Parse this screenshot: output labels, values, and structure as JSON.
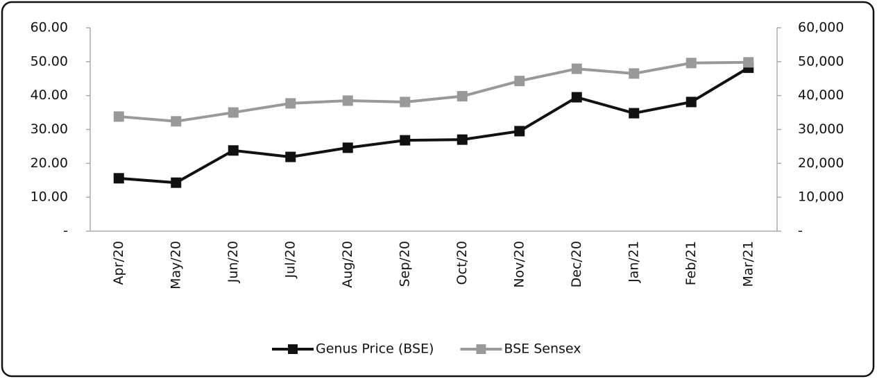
{
  "chart_data": {
    "type": "line",
    "categories": [
      "Apr/20",
      "May/20",
      "Jun/20",
      "Jul/20",
      "Aug/20",
      "Sep/20",
      "Oct/20",
      "Nov/20",
      "Dec/20",
      "Jan/21",
      "Feb/21",
      "Mar/21"
    ],
    "series": [
      {
        "name": "Genus Price (BSE)",
        "color": "#111111",
        "values": [
          15.6,
          14.3,
          23.8,
          21.9,
          24.6,
          26.8,
          27.0,
          29.5,
          39.5,
          34.8,
          38.1,
          48.2
        ]
      },
      {
        "name": "BSE Sensex",
        "color": "#999999",
        "axis": "y2",
        "values": [
          33800,
          32400,
          35000,
          37700,
          38500,
          38100,
          39800,
          44300,
          47900,
          46500,
          49600,
          49800
        ]
      }
    ],
    "ylim": [
      0,
      60
    ],
    "yticks": [
      {
        "value": 0,
        "label": "-"
      },
      {
        "value": 10,
        "label": "10.00"
      },
      {
        "value": 20,
        "label": "20.00"
      },
      {
        "value": 30,
        "label": "30.00"
      },
      {
        "value": 40,
        "label": "40.00"
      },
      {
        "value": 50,
        "label": "50.00"
      },
      {
        "value": 60,
        "label": "60.00"
      }
    ],
    "y2lim": [
      0,
      60000
    ],
    "y2ticks": [
      {
        "value": 0,
        "label": "-"
      },
      {
        "value": 10000,
        "label": "10,000"
      },
      {
        "value": 20000,
        "label": "20,000"
      },
      {
        "value": 30000,
        "label": "30,000"
      },
      {
        "value": 40000,
        "label": "40,000"
      },
      {
        "value": 50000,
        "label": "50,000"
      },
      {
        "value": 60000,
        "label": "60,000"
      }
    ],
    "legend": "bottom"
  }
}
